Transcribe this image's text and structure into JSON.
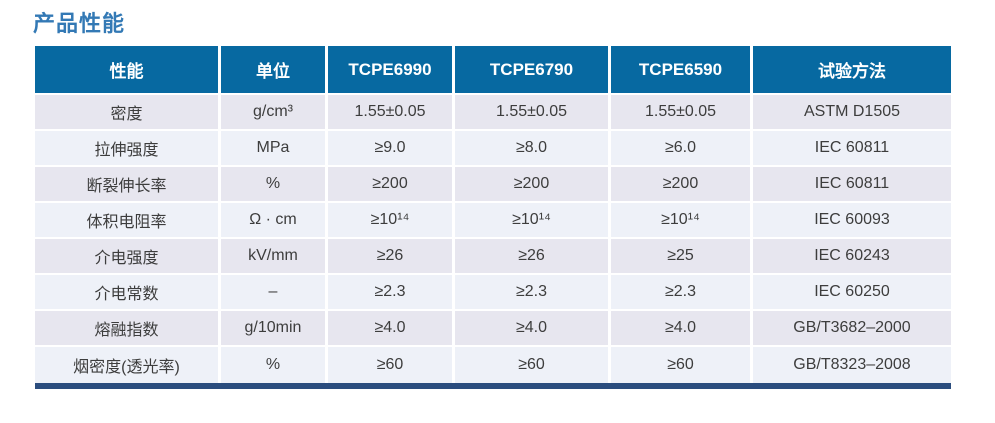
{
  "page": {
    "title": "产品性能"
  },
  "colors": {
    "title_text": "#3379b5",
    "header_bg": "#0769a1",
    "header_text": "#ffffff",
    "row_odd_bg": "#e7e6ef",
    "row_even_bg": "#eef1f8",
    "body_text": "#3d3d3d",
    "bottom_bar": "#2b4d7e"
  },
  "table": {
    "columns": [
      "性能",
      "单位",
      "TCPE6990",
      "TCPE6790",
      "TCPE6590",
      "试验方法"
    ],
    "rows": [
      {
        "cells": [
          "密度",
          "g/cm³",
          "1.55±0.05",
          "1.55±0.05",
          "1.55±0.05",
          "ASTM D1505"
        ]
      },
      {
        "cells": [
          "拉伸强度",
          "MPa",
          "≥9.0",
          "≥8.0",
          "≥6.0",
          "IEC 60811"
        ]
      },
      {
        "cells": [
          "断裂伸长率",
          "%",
          "≥200",
          "≥200",
          "≥200",
          "IEC 60811"
        ]
      },
      {
        "cells": [
          "体积电阻率",
          "Ω · cm",
          "≥10¹⁴",
          "≥10¹⁴",
          "≥10¹⁴",
          "IEC 60093"
        ]
      },
      {
        "cells": [
          "介电强度",
          "kV/mm",
          "≥26",
          "≥26",
          "≥25",
          "IEC 60243"
        ]
      },
      {
        "cells": [
          "介电常数",
          "–",
          "≥2.3",
          "≥2.3",
          "≥2.3",
          "IEC 60250"
        ]
      },
      {
        "cells": [
          "熔融指数",
          "g/10min",
          "≥4.0",
          "≥4.0",
          "≥4.0",
          "GB/T3682–2000"
        ]
      },
      {
        "cells": [
          "烟密度(透光率)",
          "%",
          "≥60",
          "≥60",
          "≥60",
          "GB/T8323–2008"
        ]
      }
    ]
  }
}
